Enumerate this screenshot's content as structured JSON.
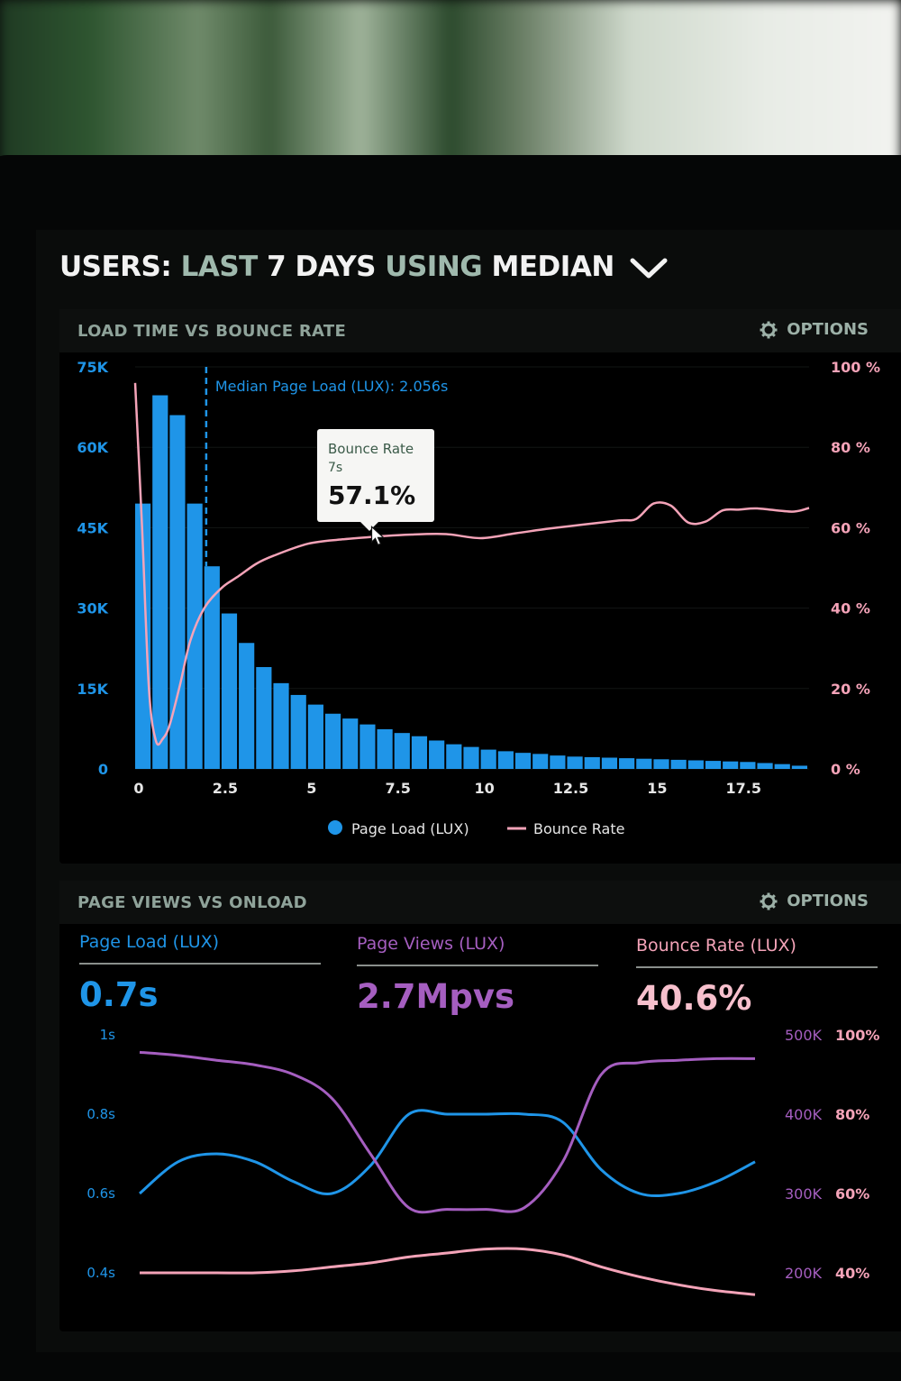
{
  "header": {
    "title_parts": [
      "USERS:",
      "LAST",
      "7 DAYS",
      "USING",
      "MEDIAN"
    ]
  },
  "colors": {
    "blue": "#1f95e8",
    "pink": "#f4a3b8",
    "purple": "#a55ec0",
    "muted": "#8fa39a"
  },
  "icons": [
    "chevron-down-icon",
    "gear-icon",
    "cursor-icon"
  ],
  "panel1": {
    "title": "LOAD TIME VS BOUNCE RATE",
    "options_label": "OPTIONS"
  },
  "panel2": {
    "title": "PAGE VIEWS VS ONLOAD",
    "options_label": "OPTIONS",
    "metrics": [
      {
        "label": "Page Load (LUX)",
        "value": "0.7s",
        "color": "#1f95e8"
      },
      {
        "label": "Page Views (LUX)",
        "value": "2.7Mpvs",
        "color": "#a55ec0"
      },
      {
        "label": "Bounce Rate (LUX)",
        "value": "40.6%",
        "color": "#f4a3b8"
      }
    ]
  },
  "chart_data": [
    {
      "type": "bar",
      "title": "LOAD TIME VS BOUNCE RATE",
      "x_ticks": [
        "0",
        "2.5",
        "5",
        "7.5",
        "10",
        "12.5",
        "15",
        "17.5"
      ],
      "y_left_ticks": [
        "0",
        "15K",
        "30K",
        "45K",
        "60K",
        "75K"
      ],
      "y_right_ticks": [
        "0 %",
        "20 %",
        "40 %",
        "60 %",
        "80 %",
        "100 %"
      ],
      "ylim_left": [
        0,
        75000
      ],
      "ylim_right": [
        0,
        100
      ],
      "xlim": [
        0,
        19.5
      ],
      "bar_width": 0.5,
      "series": [
        {
          "name": "Page Load (LUX)",
          "type": "bar",
          "axis": "left",
          "color": "#1f95e8",
          "x": [
            0,
            0.5,
            1,
            1.5,
            2,
            2.5,
            3,
            3.5,
            4,
            4.5,
            5,
            5.5,
            6,
            6.5,
            7,
            7.5,
            8,
            8.5,
            9,
            9.5,
            10,
            10.5,
            11,
            11.5,
            12,
            12.5,
            13,
            13.5,
            14,
            14.5,
            15,
            15.5,
            16,
            16.5,
            17,
            17.5,
            18,
            18.5,
            19
          ],
          "values": [
            49500,
            69700,
            66000,
            49500,
            37800,
            29000,
            23500,
            19000,
            16000,
            13800,
            12000,
            10300,
            9400,
            8300,
            7400,
            6700,
            6100,
            5300,
            4600,
            4100,
            3600,
            3300,
            3000,
            2800,
            2500,
            2300,
            2200,
            2100,
            2000,
            1900,
            1800,
            1700,
            1600,
            1500,
            1400,
            1300,
            1100,
            900,
            600
          ]
        },
        {
          "name": "Bounce Rate",
          "type": "line",
          "axis": "right",
          "color": "#f4a3b8",
          "x": [
            0,
            0.2,
            0.4,
            0.6,
            0.8,
            1.0,
            1.3,
            1.6,
            2.0,
            2.5,
            3.0,
            3.5,
            4.0,
            5.0,
            6.0,
            7.0,
            8.0,
            9.0,
            10.0,
            11.0,
            12.0,
            13.0,
            14.0,
            14.5,
            15.0,
            15.5,
            16.0,
            16.5,
            17.0,
            17.5,
            18.0,
            19.0,
            19.5
          ],
          "values": [
            96,
            60,
            20,
            7,
            7.5,
            11,
            21,
            32,
            40,
            45,
            48,
            51,
            53,
            56,
            57.1,
            57.8,
            58.3,
            58.4,
            57.4,
            58.6,
            59.8,
            60.8,
            61.8,
            62.2,
            66,
            65.5,
            61.3,
            61.5,
            64.3,
            64.5,
            64.8,
            64,
            64.9
          ]
        }
      ],
      "annotations": [
        {
          "type": "vline",
          "x": 2.056,
          "label": "Median Page Load (LUX): 2.056s",
          "color": "#1f95e8"
        }
      ],
      "tooltip": {
        "series": "Bounce Rate",
        "x_label": "7s",
        "value_label": "57.1%",
        "x": 7,
        "y": 57.1
      },
      "legend": "bottom",
      "grid": true
    },
    {
      "type": "line",
      "title": "PAGE VIEWS VS ONLOAD",
      "y_left_ticks": [
        "0.4s",
        "0.6s",
        "0.8s",
        "1s"
      ],
      "y_right_mid_ticks": [
        "200K",
        "300K",
        "400K",
        "500K"
      ],
      "y_right_ticks": [
        "40%",
        "60%",
        "80%",
        "100%"
      ],
      "ylim_left": [
        0.4,
        1.0
      ],
      "ylim_mid": [
        200000,
        500000
      ],
      "ylim_right": [
        40,
        100
      ],
      "xlim": [
        0,
        16
      ],
      "grid": false,
      "series": [
        {
          "name": "Page Load (LUX)",
          "axis": "left",
          "color": "#1f95e8",
          "x": [
            0,
            1,
            2,
            3,
            4,
            5,
            6,
            7,
            8,
            9,
            10,
            11,
            12,
            13,
            14,
            15,
            16
          ],
          "values": [
            0.6,
            0.68,
            0.7,
            0.68,
            0.63,
            0.6,
            0.67,
            0.8,
            0.8,
            0.8,
            0.8,
            0.78,
            0.66,
            0.6,
            0.6,
            0.63,
            0.68
          ]
        },
        {
          "name": "Page Views (LUX)",
          "axis": "mid",
          "color": "#a55ec0",
          "x": [
            0,
            1,
            2,
            3,
            4,
            5,
            6,
            7,
            8,
            9,
            10,
            11,
            12,
            13,
            14,
            15,
            16
          ],
          "values": [
            478000,
            474000,
            468000,
            462000,
            450000,
            420000,
            350000,
            282000,
            280000,
            280000,
            282000,
            340000,
            450000,
            465000,
            468000,
            470000,
            470000
          ]
        },
        {
          "name": "Bounce Rate (LUX)",
          "axis": "right",
          "color": "#f4a3b8",
          "x": [
            0,
            1,
            2,
            3,
            4,
            5,
            6,
            7,
            8,
            9,
            10,
            11,
            12,
            13,
            14,
            15,
            16
          ],
          "values": [
            40,
            40,
            40,
            40,
            40.5,
            41.5,
            42.5,
            44,
            45,
            46,
            46,
            44.5,
            41.5,
            39,
            37,
            35.5,
            34.5
          ]
        }
      ]
    }
  ]
}
